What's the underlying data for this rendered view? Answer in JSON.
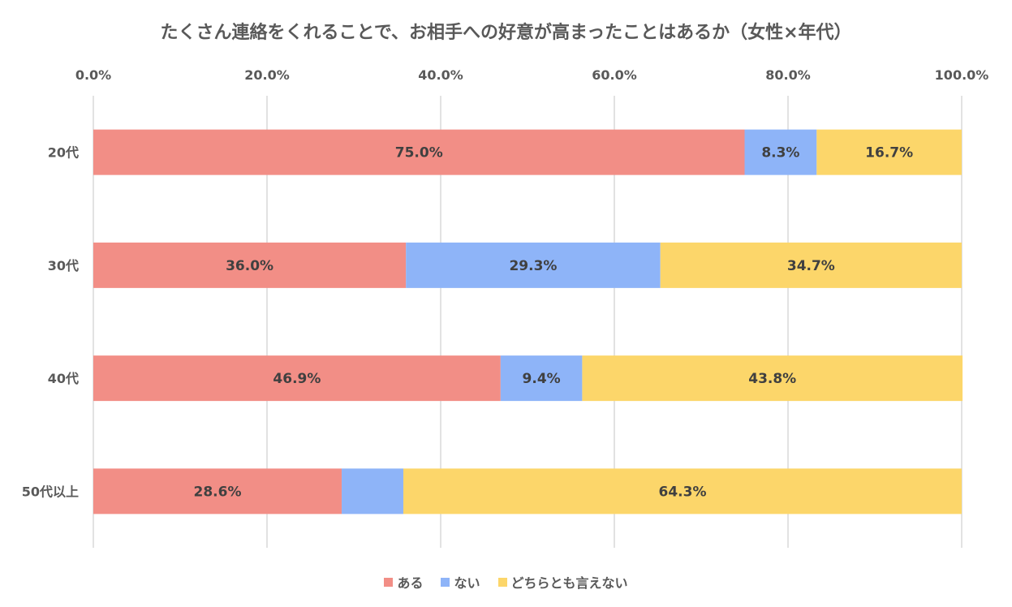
{
  "chart_data": {
    "type": "bar",
    "orientation": "horizontal",
    "stacked": true,
    "title": "たくさん連絡をくれることで、お相手への好意が高まったことはあるか（女性×年代）",
    "categories": [
      "20代",
      "30代",
      "40代",
      "50代以上"
    ],
    "series": [
      {
        "name": "ある",
        "color": "#F28E86",
        "values": [
          75.0,
          36.0,
          46.9,
          28.6
        ],
        "labels": [
          "75.0%",
          "36.0%",
          "46.9%",
          "28.6%"
        ]
      },
      {
        "name": "ない",
        "color": "#8EB4F8",
        "values": [
          8.3,
          29.3,
          9.4,
          7.1
        ],
        "labels": [
          "8.3%",
          "29.3%",
          "9.4%",
          ""
        ]
      },
      {
        "name": "どちらとも言えない",
        "color": "#FCD66A",
        "values": [
          16.7,
          34.7,
          43.8,
          64.3
        ],
        "labels": [
          "16.7%",
          "34.7%",
          "43.8%",
          "64.3%"
        ]
      }
    ],
    "xlim": [
      0,
      100
    ],
    "xticks": [
      "0.0%",
      "20.0%",
      "40.0%",
      "60.0%",
      "80.0%",
      "100.0%"
    ],
    "x_axis_position": "top",
    "grid": true,
    "legend": "bottom"
  }
}
